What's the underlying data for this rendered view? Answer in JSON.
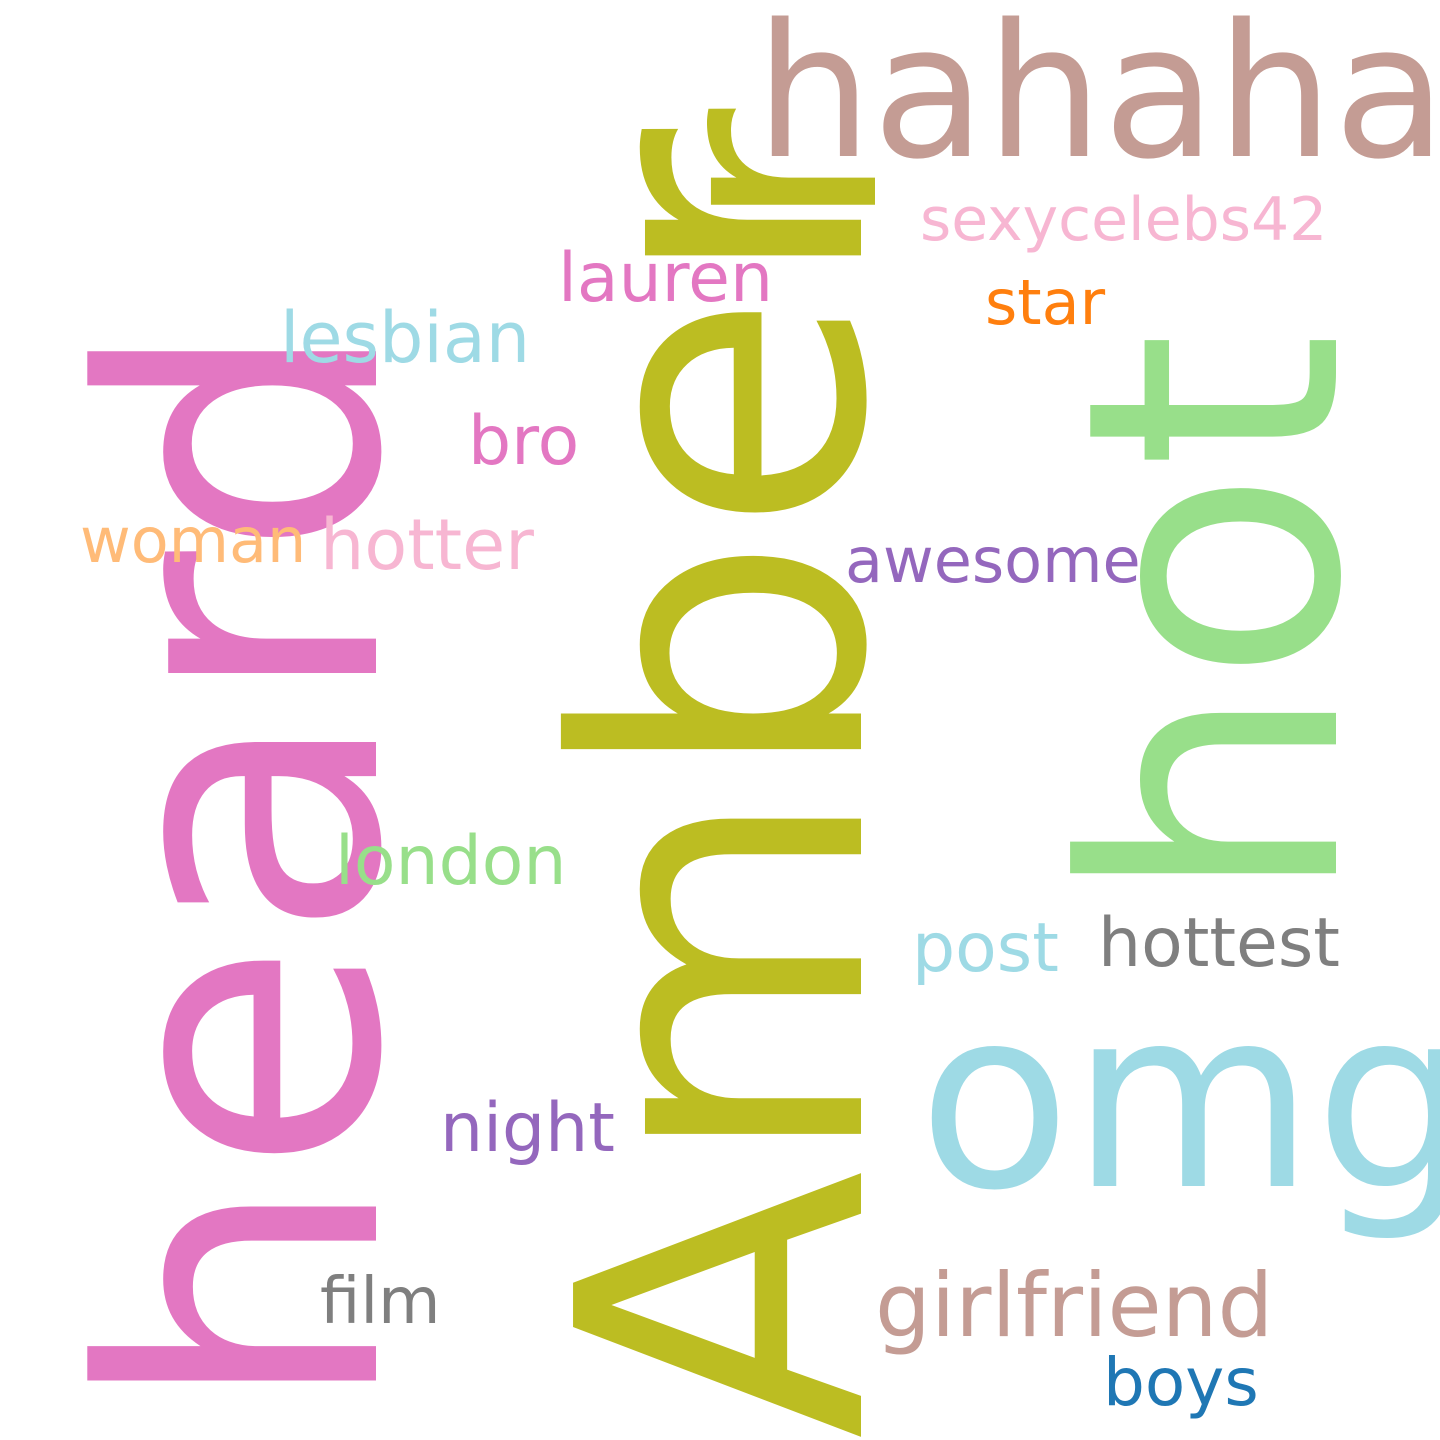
{
  "words": [
    {
      "id": "heard",
      "text": "heard",
      "color": "#e377c2"
    },
    {
      "id": "amber",
      "text": "Amber",
      "color": "#bcbd22"
    },
    {
      "id": "hot",
      "text": "hot",
      "color": "#98df8a"
    },
    {
      "id": "r",
      "text": "r",
      "color": "#bcbd22"
    },
    {
      "id": "hahaha",
      "text": "hahaha",
      "color": "#c49c94"
    },
    {
      "id": "sexycelebs42",
      "text": "sexycelebs42",
      "color": "#f7b6d2"
    },
    {
      "id": "lauren",
      "text": "lauren",
      "color": "#e377c2"
    },
    {
      "id": "star",
      "text": "star",
      "color": "#ff7f0e"
    },
    {
      "id": "lesbian",
      "text": "lesbian",
      "color": "#9edae5"
    },
    {
      "id": "bro",
      "text": "bro",
      "color": "#e377c2"
    },
    {
      "id": "woman",
      "text": "woman",
      "color": "#ffbb78"
    },
    {
      "id": "hotter",
      "text": "hotter",
      "color": "#f7b6d2"
    },
    {
      "id": "awesome",
      "text": "awesome",
      "color": "#9467bd"
    },
    {
      "id": "omg",
      "text": "omg",
      "color": "#9edae5"
    },
    {
      "id": "london",
      "text": "london",
      "color": "#98df8a"
    },
    {
      "id": "post",
      "text": "post",
      "color": "#9edae5"
    },
    {
      "id": "hottest",
      "text": "hottest",
      "color": "#7f7f7f"
    },
    {
      "id": "night",
      "text": "night",
      "color": "#9467bd"
    },
    {
      "id": "girlfriend",
      "text": "girlfriend",
      "color": "#c49c94"
    },
    {
      "id": "film",
      "text": "film",
      "color": "#7f7f7f"
    },
    {
      "id": "boys",
      "text": "boys",
      "color": "#1f77b4"
    }
  ]
}
